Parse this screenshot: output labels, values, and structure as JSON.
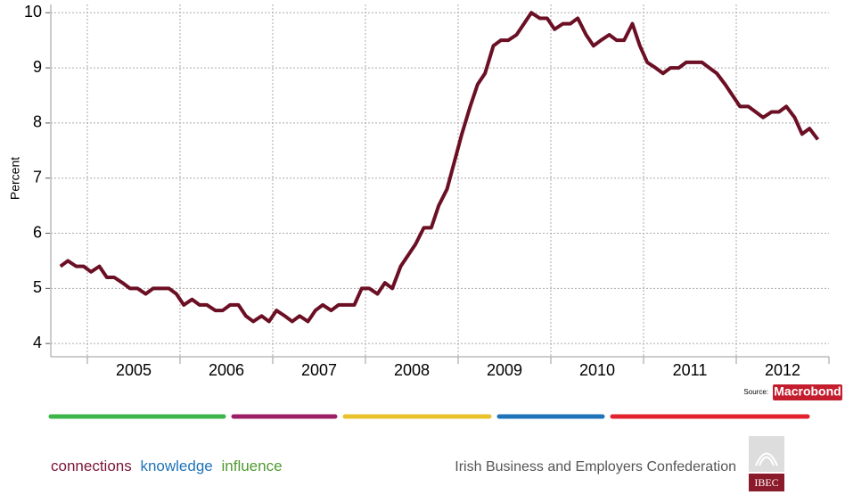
{
  "chart_data": {
    "type": "line",
    "y_label": "Percent",
    "series": [
      {
        "name": null,
        "color": "#6b0f24",
        "x": [
          2004.71,
          2004.79,
          2004.88,
          2004.96,
          2005.04,
          2005.13,
          2005.21,
          2005.29,
          2005.38,
          2005.46,
          2005.54,
          2005.63,
          2005.71,
          2005.79,
          2005.88,
          2005.96,
          2006.04,
          2006.13,
          2006.21,
          2006.29,
          2006.38,
          2006.46,
          2006.54,
          2006.63,
          2006.71,
          2006.79,
          2006.88,
          2006.96,
          2007.04,
          2007.13,
          2007.21,
          2007.29,
          2007.38,
          2007.46,
          2007.54,
          2007.63,
          2007.71,
          2007.79,
          2007.88,
          2007.96,
          2008.04,
          2008.13,
          2008.21,
          2008.29,
          2008.38,
          2008.46,
          2008.54,
          2008.63,
          2008.71,
          2008.79,
          2008.88,
          2008.96,
          2009.04,
          2009.13,
          2009.21,
          2009.29,
          2009.38,
          2009.46,
          2009.54,
          2009.63,
          2009.71,
          2009.79,
          2009.88,
          2009.96,
          2010.04,
          2010.13,
          2010.21,
          2010.29,
          2010.38,
          2010.46,
          2010.54,
          2010.63,
          2010.71,
          2010.79,
          2010.88,
          2010.96,
          2011.04,
          2011.13,
          2011.21,
          2011.29,
          2011.38,
          2011.46,
          2011.54,
          2011.63,
          2011.71,
          2011.79,
          2011.88,
          2011.96,
          2012.04,
          2012.13,
          2012.21,
          2012.29,
          2012.38,
          2012.46,
          2012.54,
          2012.63,
          2012.71,
          2012.79,
          2012.88
        ],
        "values": [
          5.4,
          5.5,
          5.4,
          5.4,
          5.3,
          5.4,
          5.2,
          5.2,
          5.1,
          5.0,
          5.0,
          4.9,
          5.0,
          5.0,
          5.0,
          4.9,
          4.7,
          4.8,
          4.7,
          4.7,
          4.6,
          4.6,
          4.7,
          4.7,
          4.5,
          4.4,
          4.5,
          4.4,
          4.6,
          4.5,
          4.4,
          4.5,
          4.4,
          4.6,
          4.7,
          4.6,
          4.7,
          4.7,
          4.7,
          5.0,
          5.0,
          4.9,
          5.1,
          5.0,
          5.4,
          5.6,
          5.8,
          6.1,
          6.1,
          6.5,
          6.8,
          7.3,
          7.8,
          8.3,
          8.7,
          8.9,
          9.4,
          9.5,
          9.5,
          9.6,
          9.8,
          10.0,
          9.9,
          9.9,
          9.7,
          9.8,
          9.8,
          9.9,
          9.6,
          9.4,
          9.5,
          9.6,
          9.5,
          9.5,
          9.8,
          9.4,
          9.1,
          9.0,
          8.9,
          9.0,
          9.0,
          9.1,
          9.1,
          9.1,
          9.0,
          8.9,
          8.7,
          8.5,
          8.3,
          8.3,
          8.2,
          8.1,
          8.2,
          8.2,
          8.3,
          8.1,
          7.8,
          7.9,
          7.7
        ]
      }
    ],
    "xlim": [
      2004.606,
      2013.0
    ],
    "xticks": [
      2005,
      2006,
      2007,
      2008,
      2009,
      2010,
      2011,
      2012
    ],
    "ylim": [
      3.76,
      10.15
    ],
    "yticks": [
      4,
      5,
      6,
      7,
      8,
      9,
      10
    ],
    "grid": true,
    "source_label": "Source:",
    "source_name": "Macrobond"
  },
  "footer": {
    "tagline": [
      "connections",
      "knowledge",
      "influence"
    ],
    "organisation": "Irish Business and Employers Confederation",
    "logo_text": "IBEC"
  }
}
